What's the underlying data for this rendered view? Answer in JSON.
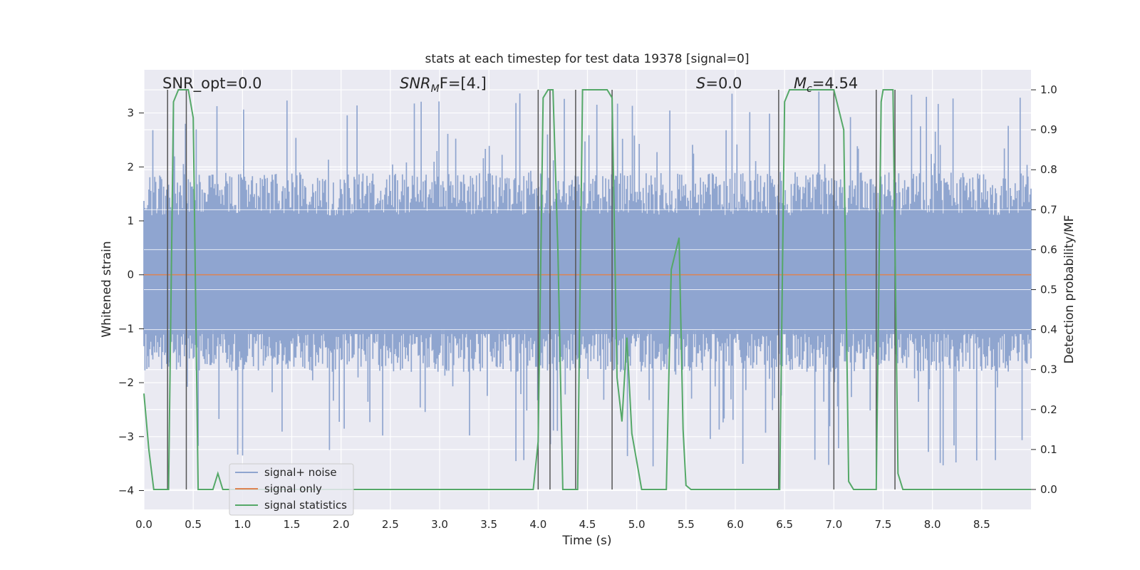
{
  "chart_data": {
    "type": "line",
    "title": "stats at each timestep for test data 19378 [signal=0]",
    "xlabel": "Time (s)",
    "ylabel_left": "Whitened strain",
    "ylabel_right": "Detection probability/MF",
    "xlim": [
      0,
      9.0
    ],
    "ylim_left": [
      -4.35,
      3.8
    ],
    "ylim_right": [
      -0.05,
      1.05
    ],
    "x_ticks": [
      "0.0",
      "0.5",
      "1.0",
      "1.5",
      "2.0",
      "2.5",
      "3.0",
      "3.5",
      "4.0",
      "4.5",
      "5.0",
      "5.5",
      "6.0",
      "6.5",
      "7.0",
      "7.5",
      "8.0",
      "8.5"
    ],
    "y_ticks_left": [
      "−4",
      "−3",
      "−2",
      "−1",
      "0",
      "1",
      "2",
      "3"
    ],
    "y_ticks_right": [
      "0.0",
      "0.1",
      "0.2",
      "0.3",
      "0.4",
      "0.5",
      "0.6",
      "0.7",
      "0.8",
      "0.9",
      "1.0"
    ],
    "grid": true,
    "legend_position": "lower-left",
    "annotations": {
      "snr_opt": "SNR_opt=0.0",
      "snr_mf_main": "SNR",
      "snr_mf_sub": "M",
      "snr_mf_rest": "F=[4.]",
      "s_main": "S",
      "s_rest": "=0.0",
      "mc_main": "M",
      "mc_sub": "c",
      "mc_rest": "=4.54"
    },
    "series": [
      {
        "name": "signal+ noise",
        "color": "#8fa5cf",
        "envelope": true,
        "typical_range": [
          -1.8,
          1.9
        ],
        "extremes": [
          -3.6,
          3.4
        ]
      },
      {
        "name": "signal only",
        "color": "#dd8452",
        "x": [
          0,
          9.0
        ],
        "y": [
          0,
          0
        ]
      },
      {
        "name": "signal statistics",
        "color": "#55a868",
        "axis": "right",
        "x": [
          0.0,
          0.05,
          0.1,
          0.25,
          0.3,
          0.35,
          0.4,
          0.45,
          0.5,
          0.55,
          0.6,
          0.7,
          0.75,
          0.8,
          0.9,
          1.0,
          1.5,
          2.0,
          3.0,
          3.5,
          3.95,
          4.0,
          4.05,
          4.1,
          4.15,
          4.2,
          4.25,
          4.35,
          4.4,
          4.45,
          4.7,
          4.75,
          4.8,
          4.85,
          4.9,
          4.95,
          5.0,
          5.05,
          5.1,
          5.3,
          5.35,
          5.43,
          5.47,
          5.5,
          5.55,
          5.6,
          6.0,
          6.4,
          6.45,
          6.5,
          6.55,
          6.6,
          7.0,
          7.05,
          7.1,
          7.15,
          7.2,
          7.3,
          7.43,
          7.48,
          7.5,
          7.55,
          7.6,
          7.65,
          7.7,
          7.75,
          8.0,
          8.25,
          8.5,
          9.0
        ],
        "y": [
          0.24,
          0.1,
          0.0,
          0.0,
          0.97,
          1.0,
          1.0,
          1.0,
          0.93,
          0.0,
          0.0,
          0.0,
          0.04,
          0.0,
          0.0,
          0.0,
          0.0,
          0.0,
          0.0,
          0.0,
          0.0,
          0.12,
          0.98,
          1.0,
          1.0,
          0.6,
          0.0,
          0.0,
          0.0,
          1.0,
          1.0,
          0.98,
          0.28,
          0.17,
          0.38,
          0.14,
          0.07,
          0.0,
          0.0,
          0.0,
          0.55,
          0.63,
          0.15,
          0.01,
          0.0,
          0.0,
          0.0,
          0.0,
          0.0,
          0.97,
          1.0,
          1.0,
          1.0,
          0.95,
          0.9,
          0.02,
          0.0,
          0.0,
          0.0,
          0.97,
          1.0,
          1.0,
          1.0,
          0.04,
          0.0,
          0.0,
          0.0,
          0.0,
          0.0,
          0.0
        ]
      }
    ],
    "event_lines_x": [
      0.24,
      0.43,
      4.0,
      4.12,
      4.38,
      4.75,
      6.44,
      7.0,
      7.43,
      7.62
    ],
    "event_line_color": "#555555"
  },
  "colors": {
    "plot_background": "#eaeaf2",
    "grid": "#ffffff"
  }
}
